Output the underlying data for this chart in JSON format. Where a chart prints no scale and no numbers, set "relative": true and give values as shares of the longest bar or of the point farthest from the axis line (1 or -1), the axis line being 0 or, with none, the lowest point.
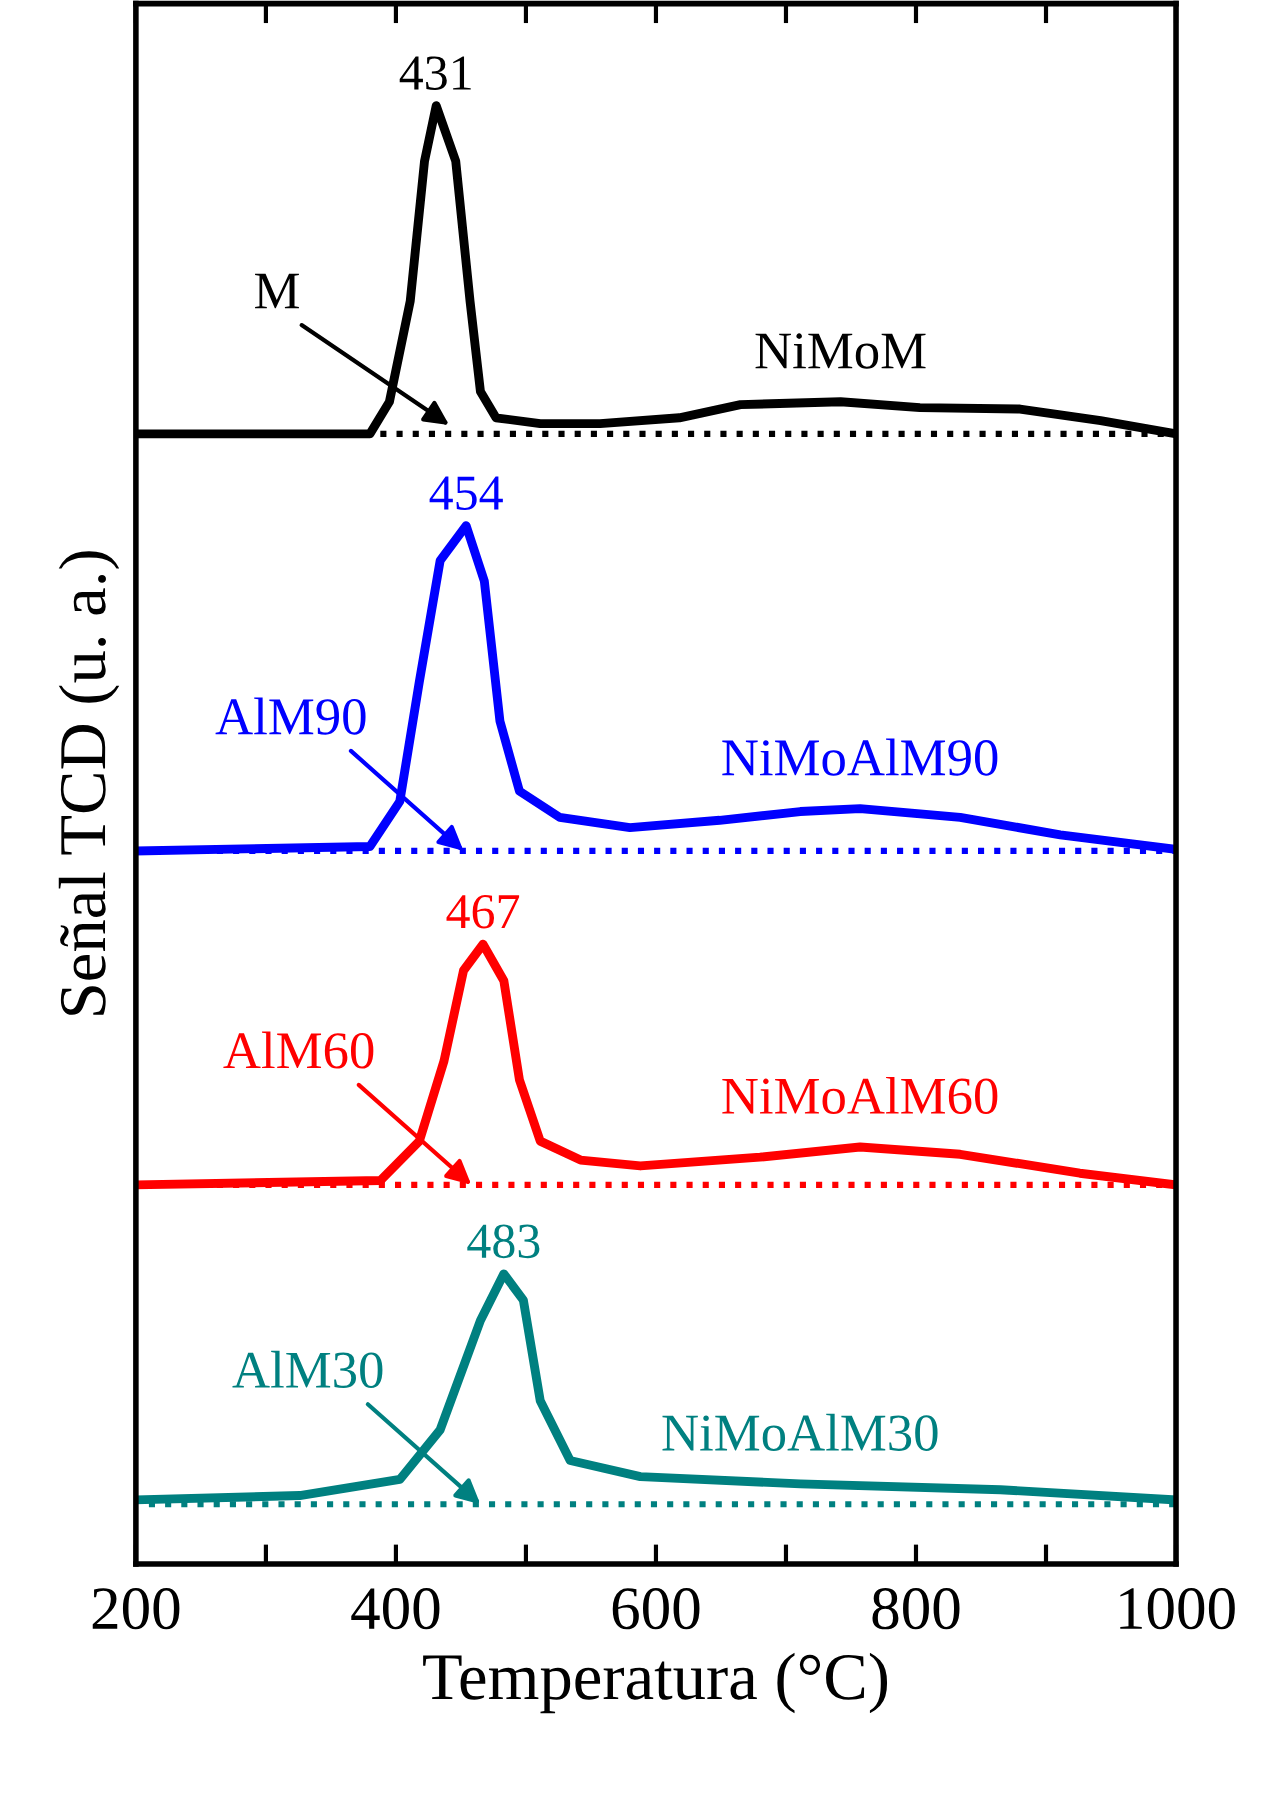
{
  "chart_data": {
    "type": "line",
    "relative": true,
    "xlabel": "Temperatura (°C)",
    "ylabel": "Señal TCD (u. a.)",
    "xlim": [
      200,
      1000
    ],
    "xticks": [
      200,
      {
        "value": 300,
        "label": null
      },
      400,
      {
        "value": 500,
        "label": null
      },
      600,
      {
        "value": 700,
        "label": null
      },
      800,
      {
        "value": 900,
        "label": null
      },
      1000
    ],
    "tick_labels": "x",
    "legend": false,
    "grid": false,
    "series": [
      {
        "name": "NiMoM",
        "color": "#000000",
        "x": [
          200,
          380,
          395,
          411,
          422,
          431,
          446,
          457,
          465,
          477,
          511,
          557,
          618,
          665,
          742,
          803,
          880,
          942,
          1000
        ],
        "values": [
          0.775,
          0.775,
          0.797,
          0.866,
          0.962,
          1.0,
          0.962,
          0.866,
          0.804,
          0.786,
          0.782,
          0.782,
          0.786,
          0.795,
          0.797,
          0.793,
          0.792,
          0.784,
          0.775
        ]
      },
      {
        "name": "NiMoAlM90",
        "color": "#0000ff",
        "x": [
          200,
          380,
          403,
          418,
          434,
          454,
          468,
          480,
          495,
          526,
          580,
          649,
          711,
          757,
          834,
          911,
          1000
        ],
        "values": [
          0.489,
          0.492,
          0.523,
          0.605,
          0.688,
          0.712,
          0.674,
          0.578,
          0.53,
          0.512,
          0.505,
          0.51,
          0.516,
          0.518,
          0.512,
          0.5,
          0.49
        ]
      },
      {
        "name": "NiMoAlM60",
        "color": "#ff0000",
        "x": [
          200,
          388,
          418,
          437,
          452,
          467,
          483,
          495,
          511,
          542,
          588,
          680,
          757,
          834,
          926,
          1000
        ],
        "values": [
          0.26,
          0.263,
          0.29,
          0.345,
          0.407,
          0.425,
          0.4,
          0.332,
          0.29,
          0.277,
          0.273,
          0.279,
          0.286,
          0.281,
          0.268,
          0.26
        ]
      },
      {
        "name": "NiMoAlM30",
        "color": "#008080",
        "x": [
          200,
          326,
          403,
          434,
          465,
          483,
          498,
          511,
          534,
          588,
          711,
          865,
          1000
        ],
        "values": [
          0.044,
          0.047,
          0.058,
          0.092,
          0.167,
          0.199,
          0.181,
          0.112,
          0.071,
          0.06,
          0.055,
          0.051,
          0.044
        ]
      },
      {
        "color": "#000000",
        "line_style": "dotted",
        "x": [
          388,
          1000
        ],
        "values": [
          0.775,
          0.775
        ]
      },
      {
        "color": "#0000ff",
        "line_style": "dotted",
        "x": [
          200,
          1000
        ],
        "values": [
          0.489,
          0.489
        ]
      },
      {
        "color": "#ff0000",
        "line_style": "dotted",
        "x": [
          200,
          1000
        ],
        "values": [
          0.26,
          0.26
        ]
      },
      {
        "color": "#008080",
        "line_style": "dotted",
        "x": [
          210,
          1000
        ],
        "values": [
          0.041,
          0.041
        ]
      }
    ],
    "annotations": [
      {
        "text": "431",
        "x": 431,
        "y": 1.0
      },
      {
        "text": "M",
        "x": 441,
        "y": 0.781
      },
      {
        "text": "454",
        "x": 454,
        "y": 0.712
      },
      {
        "text": "AlM90",
        "x": 452,
        "y": 0.489
      },
      {
        "text": "467",
        "x": 467,
        "y": 0.425
      },
      {
        "text": "AlM60",
        "x": 458,
        "y": 0.26
      },
      {
        "text": "483",
        "x": 483,
        "y": 0.199
      },
      {
        "text": "AlM30",
        "x": 465,
        "y": 0.041
      }
    ]
  }
}
